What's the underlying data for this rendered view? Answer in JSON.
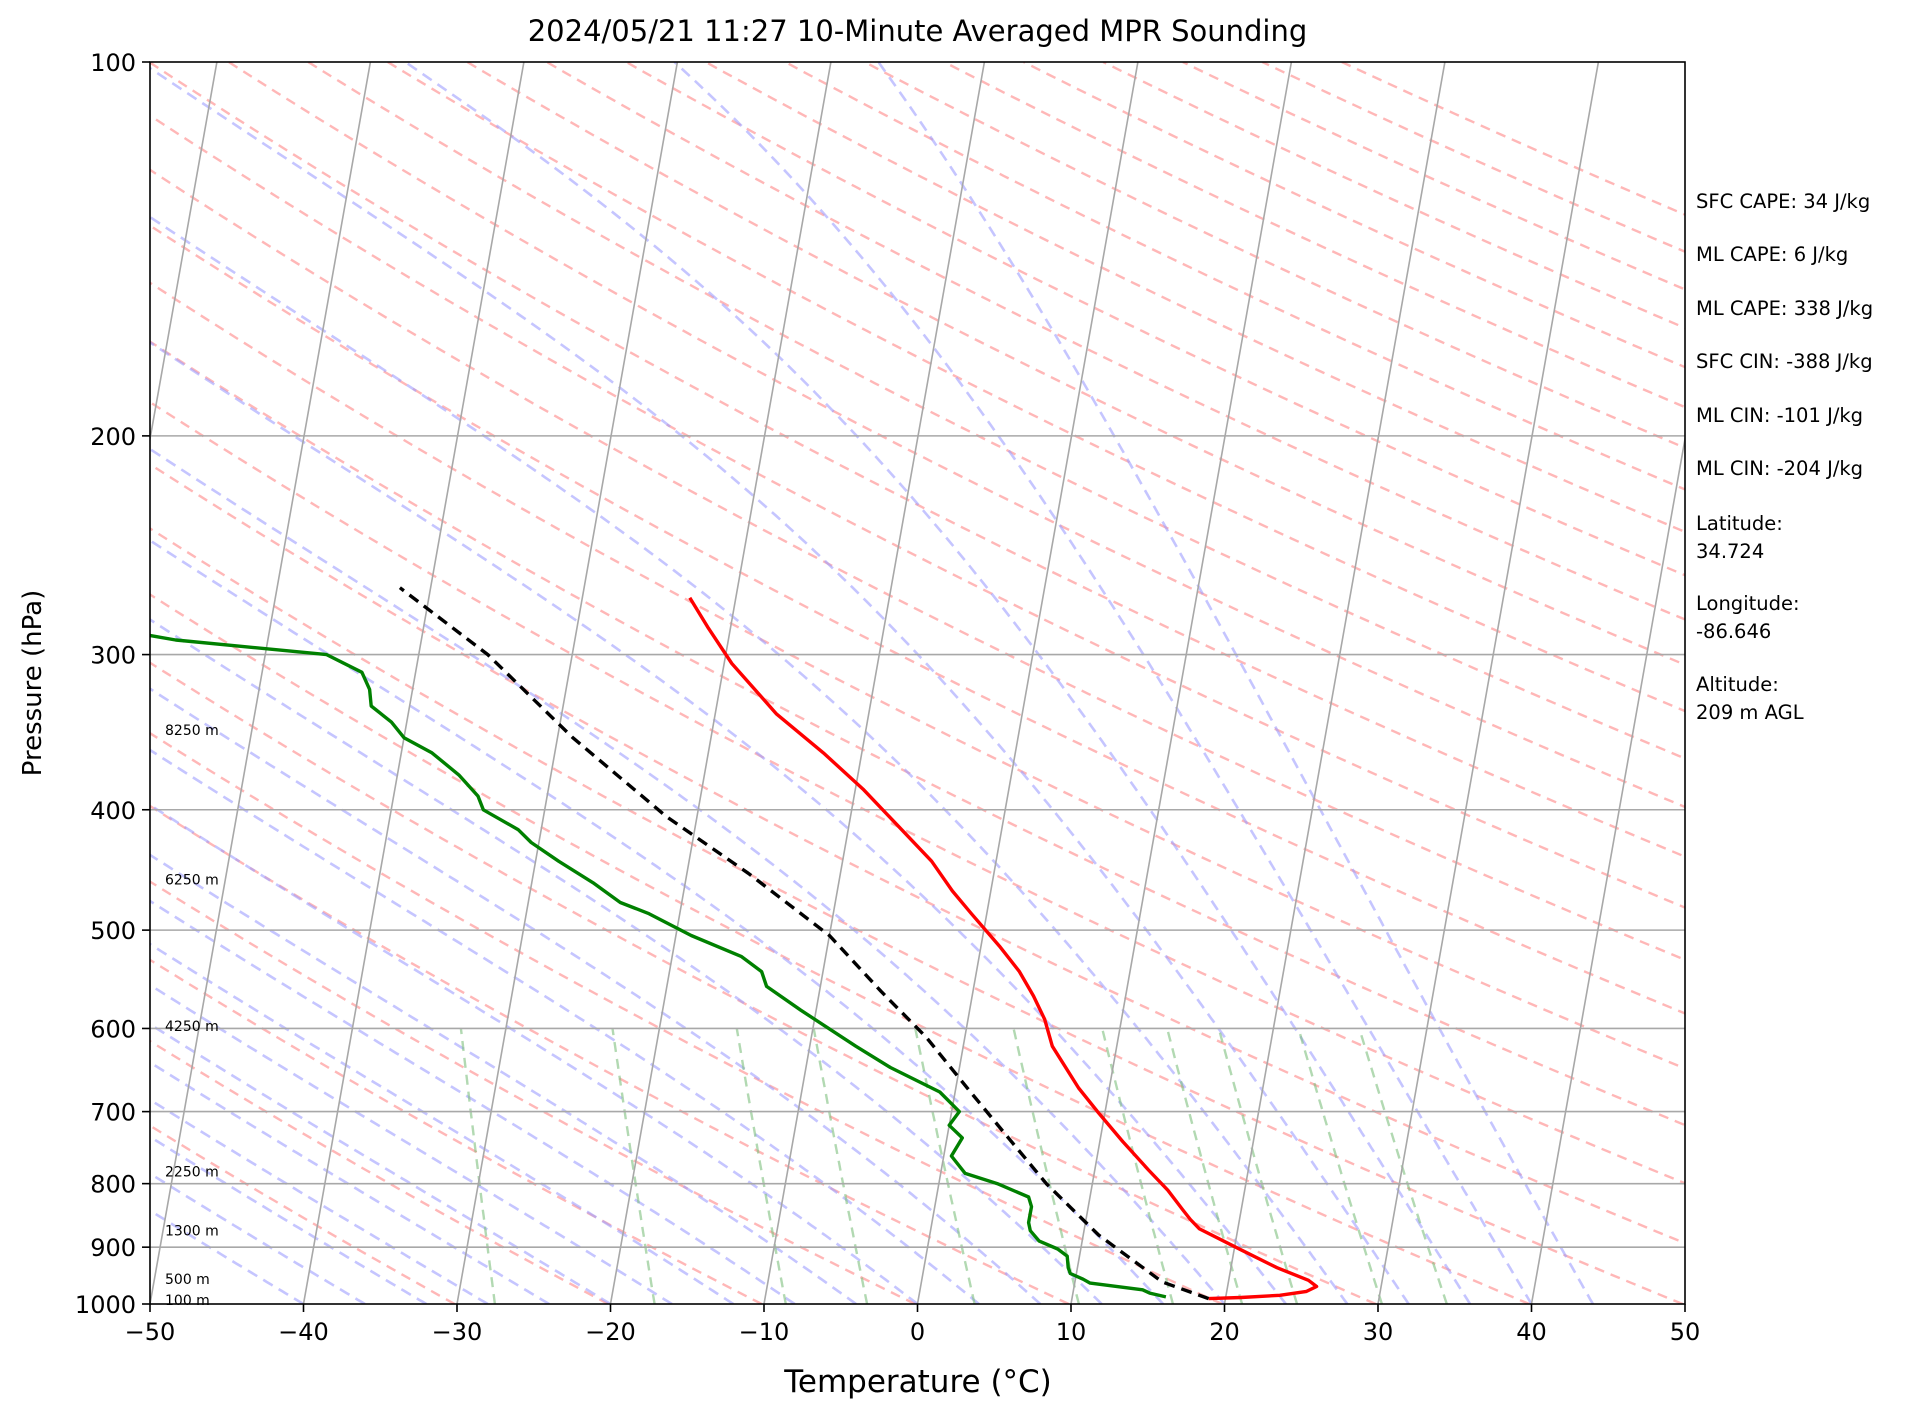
{
  "chart_data": {
    "type": "line",
    "title": "2024/05/21 11:27 10-Minute Averaged MPR Sounding",
    "xlabel": "Temperature (°C)",
    "ylabel": "Pressure (hPa)",
    "xlim": [
      -50,
      50
    ],
    "ylim": [
      1000,
      100
    ],
    "y_scale": "log",
    "skew": "skew-T log-P diagram",
    "grid": true,
    "x_ticks": [
      "−50",
      "−40",
      "−30",
      "−20",
      "−10",
      "0",
      "10",
      "20",
      "30",
      "40",
      "50"
    ],
    "x_tick_values": [
      -50,
      -40,
      -30,
      -20,
      -10,
      0,
      10,
      20,
      30,
      40,
      50
    ],
    "y_ticks": [
      "100",
      "200",
      "300",
      "400",
      "500",
      "600",
      "700",
      "800",
      "900",
      "1000"
    ],
    "y_tick_values": [
      100,
      200,
      300,
      400,
      500,
      600,
      700,
      800,
      900,
      1000
    ],
    "height_labels": [
      {
        "text": "8250 m",
        "p": 345
      },
      {
        "text": "6250 m",
        "p": 455
      },
      {
        "text": "4250 m",
        "p": 597
      },
      {
        "text": "2250 m",
        "p": 782
      },
      {
        "text": "1300 m",
        "p": 873
      },
      {
        "text": "500 m",
        "p": 955
      },
      {
        "text": "100 m",
        "p": 993
      }
    ],
    "series": [
      {
        "color": "#ff0000",
        "points": [
          [
            18.9,
            990
          ],
          [
            21,
            988
          ],
          [
            23.5,
            984
          ],
          [
            25.2,
            977
          ],
          [
            25.8,
            968
          ],
          [
            25.2,
            957
          ],
          [
            23,
            935
          ],
          [
            20.5,
            905
          ],
          [
            17.5,
            870
          ],
          [
            16.8,
            855
          ],
          [
            16.2,
            840
          ],
          [
            15,
            810
          ],
          [
            13.5,
            780
          ],
          [
            11.5,
            740
          ],
          [
            9.5,
            700
          ],
          [
            8,
            670
          ],
          [
            5.8,
            620
          ],
          [
            5,
            590
          ],
          [
            4,
            565
          ],
          [
            2.8,
            540
          ],
          [
            1.2,
            515
          ],
          [
            -1,
            485
          ],
          [
            -2.5,
            465
          ],
          [
            -4.2,
            440
          ],
          [
            -7,
            410
          ],
          [
            -9.5,
            385
          ],
          [
            -12.5,
            360
          ],
          [
            -16,
            335
          ],
          [
            -19.5,
            305
          ],
          [
            -21.5,
            285
          ],
          [
            -23,
            270
          ]
        ]
      },
      {
        "color": "#008000",
        "points": [
          [
            16.1,
            987
          ],
          [
            15,
            980
          ],
          [
            14.5,
            974
          ],
          [
            11,
            962
          ],
          [
            10.5,
            955
          ],
          [
            9.6,
            945
          ],
          [
            9.4,
            935
          ],
          [
            9.2,
            915
          ],
          [
            8.5,
            903
          ],
          [
            7.2,
            890
          ],
          [
            6.5,
            873
          ],
          [
            6.3,
            860
          ],
          [
            6.3,
            845
          ],
          [
            6.3,
            835
          ],
          [
            6,
            820
          ],
          [
            3.8,
            800
          ],
          [
            1.6,
            785
          ],
          [
            0.5,
            760
          ],
          [
            1,
            735
          ],
          [
            0,
            718
          ],
          [
            0.5,
            700
          ],
          [
            -1,
            675
          ],
          [
            -4.5,
            645
          ],
          [
            -7,
            620
          ],
          [
            -11,
            580
          ],
          [
            -13.5,
            555
          ],
          [
            -14,
            540
          ],
          [
            -15.5,
            525
          ],
          [
            -19,
            505
          ],
          [
            -22,
            485
          ],
          [
            -24,
            475
          ],
          [
            -26,
            458
          ],
          [
            -28.5,
            440
          ],
          [
            -30.5,
            425
          ],
          [
            -31.5,
            415
          ],
          [
            -34,
            400
          ],
          [
            -34.5,
            390
          ],
          [
            -36,
            375
          ],
          [
            -38,
            360
          ],
          [
            -40,
            350
          ],
          [
            -41,
            340
          ],
          [
            -42.5,
            330
          ],
          [
            -42.8,
            320
          ],
          [
            -43.5,
            310
          ],
          [
            -46,
            300
          ],
          [
            -56,
            292
          ],
          [
            -64,
            281
          ],
          [
            -65,
            275
          ],
          [
            -70,
            271
          ]
        ]
      },
      {
        "color": "#000000",
        "dashed": true,
        "points": [
          [
            18.9,
            990
          ],
          [
            15.7,
            960
          ],
          [
            11,
            880
          ],
          [
            7,
            800
          ],
          [
            4,
            735
          ],
          [
            1,
            675
          ],
          [
            -2.5,
            610
          ],
          [
            -6,
            560
          ],
          [
            -10,
            505
          ],
          [
            -16,
            450
          ],
          [
            -22,
            405
          ],
          [
            -29,
            350
          ],
          [
            -35.5,
            300
          ],
          [
            -42,
            265
          ]
        ]
      }
    ]
  },
  "annotations": [
    "SFC CAPE: 34 J/kg",
    "ML CAPE: 6 J/kg",
    "ML CAPE: 338 J/kg",
    "SFC CIN: -388 J/kg",
    "ML CIN: -101 J/kg",
    "ML CIN: -204 J/kg",
    "Latitude:\n34.724",
    "Longitude:\n-86.646",
    "Altitude:\n209 m AGL"
  ]
}
